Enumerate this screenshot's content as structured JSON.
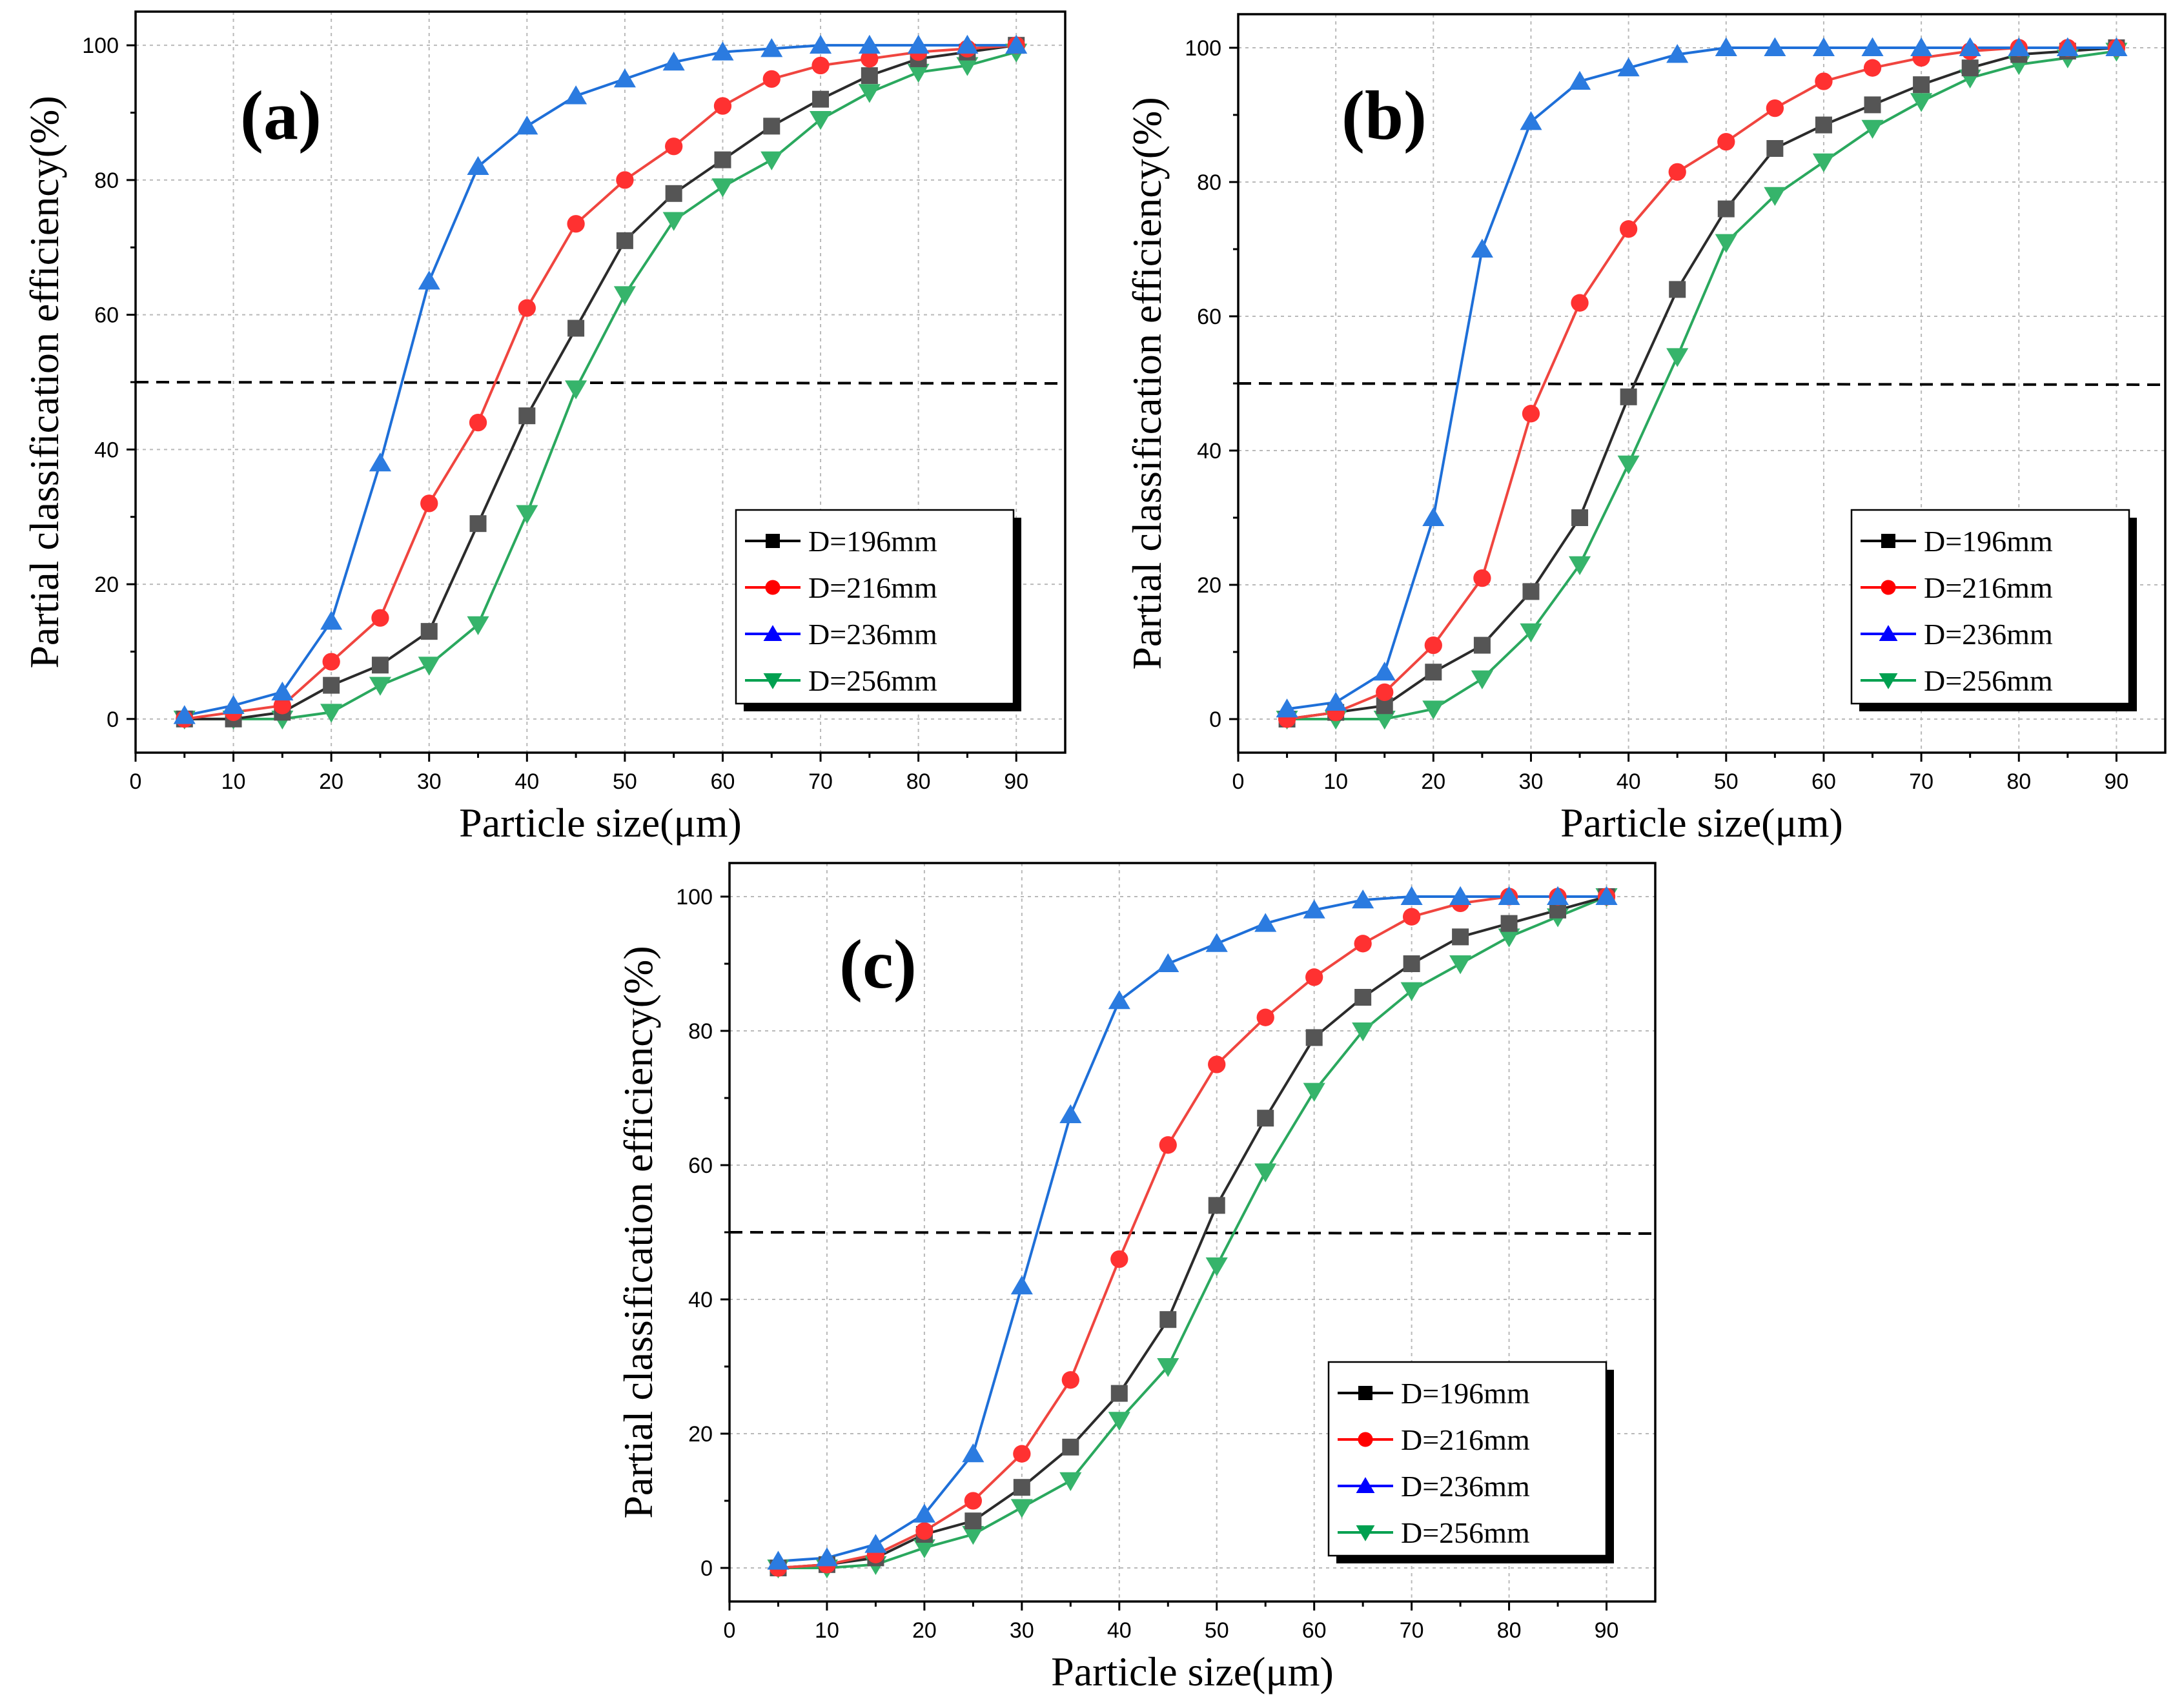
{
  "colors": {
    "D=196mm": {
      "line": "#2b2b2b",
      "fill": "#555555",
      "legend": "#000000"
    },
    "D=216mm": {
      "line": "#f0453f",
      "fill": "#ff3131",
      "legend": "#ff0000"
    },
    "D=236mm": {
      "line": "#1e6fd8",
      "fill": "#2b7be0",
      "legend": "#0000ff"
    },
    "D=256mm": {
      "line": "#2aa85e",
      "fill": "#36b46b",
      "legend": "#00a050"
    }
  },
  "chart_data": [
    {
      "type": "line",
      "panel": "(a)",
      "xlabel": "Particle size(μm)",
      "ylabel": "Partial classification efficiency(%)",
      "xlim": [
        0,
        95
      ],
      "ylim": [
        -5,
        105
      ],
      "xticks": [
        0,
        10,
        20,
        30,
        40,
        50,
        60,
        70,
        80,
        90
      ],
      "yticks": [
        0,
        20,
        40,
        60,
        80,
        100
      ],
      "reference_line_y": 50,
      "x": [
        5,
        10,
        15,
        20,
        25,
        30,
        35,
        40,
        45,
        50,
        55,
        60,
        65,
        70,
        75,
        80,
        85,
        90
      ],
      "series": [
        {
          "name": "D=196mm",
          "marker": "square",
          "values": [
            0,
            0,
            1,
            5,
            8,
            13,
            29,
            45,
            58,
            71,
            78,
            83,
            88,
            92,
            95.5,
            98,
            99,
            100
          ]
        },
        {
          "name": "D=216mm",
          "marker": "circle",
          "values": [
            0,
            1,
            2,
            8.5,
            15,
            32,
            44,
            61,
            73.5,
            80,
            85,
            91,
            95,
            97,
            98,
            99,
            99.5,
            100
          ]
        },
        {
          "name": "D=236mm",
          "marker": "triangle-up",
          "values": [
            0.5,
            2,
            4,
            14.5,
            38,
            65,
            82,
            88,
            92.5,
            95,
            97.5,
            99,
            99.5,
            100,
            100,
            100,
            100,
            100
          ]
        },
        {
          "name": "D=256mm",
          "marker": "triangle-down",
          "values": [
            0,
            0,
            0,
            1,
            5,
            8,
            14,
            30.5,
            49,
            63,
            74,
            79,
            83,
            89,
            93,
            96,
            97,
            99
          ]
        }
      ]
    },
    {
      "type": "line",
      "panel": "(b)",
      "xlabel": "Particle size(μm)",
      "ylabel": "Partial classification efficiency(%)",
      "xlim": [
        0,
        95
      ],
      "ylim": [
        -5,
        105
      ],
      "xticks": [
        0,
        10,
        20,
        30,
        40,
        50,
        60,
        70,
        80,
        90
      ],
      "yticks": [
        0,
        20,
        40,
        60,
        80,
        100
      ],
      "reference_line_y": 50,
      "x": [
        5,
        10,
        15,
        20,
        25,
        30,
        35,
        40,
        45,
        50,
        55,
        60,
        65,
        70,
        75,
        80,
        85,
        90
      ],
      "series": [
        {
          "name": "D=196mm",
          "marker": "square",
          "values": [
            0,
            1,
            2,
            7,
            11,
            19,
            30,
            48,
            64,
            76,
            85,
            88.5,
            91.5,
            94.5,
            97,
            99,
            99.5,
            100
          ]
        },
        {
          "name": "D=216mm",
          "marker": "circle",
          "values": [
            0,
            1,
            4,
            11,
            21,
            45.5,
            62,
            73,
            81.5,
            86,
            91,
            95,
            97,
            98.5,
            99.5,
            100,
            100,
            100
          ]
        },
        {
          "name": "D=236mm",
          "marker": "triangle-up",
          "values": [
            1.5,
            2.5,
            7,
            30,
            70,
            89,
            95,
            97,
            99,
            100,
            100,
            100,
            100,
            100,
            100,
            100,
            100,
            100
          ]
        },
        {
          "name": "D=256mm",
          "marker": "triangle-down",
          "values": [
            0,
            0,
            0,
            1.5,
            6,
            13,
            23,
            38,
            54,
            71,
            78,
            83,
            88,
            92,
            95.5,
            97.5,
            98.5,
            99.5
          ]
        }
      ]
    },
    {
      "type": "line",
      "panel": "(c)",
      "xlabel": "Particle size(μm)",
      "ylabel": "Partial classification efficiency(%)",
      "xlim": [
        0,
        95
      ],
      "ylim": [
        -5,
        105
      ],
      "xticks": [
        0,
        10,
        20,
        30,
        40,
        50,
        60,
        70,
        80,
        90
      ],
      "yticks": [
        0,
        20,
        40,
        60,
        80,
        100
      ],
      "reference_line_y": 50,
      "x": [
        5,
        10,
        15,
        20,
        25,
        30,
        35,
        40,
        45,
        50,
        55,
        60,
        65,
        70,
        75,
        80,
        85,
        90
      ],
      "series": [
        {
          "name": "D=196mm",
          "marker": "square",
          "values": [
            0,
            0.5,
            1.5,
            5,
            7,
            12,
            18,
            26,
            37,
            54,
            67,
            79,
            85,
            90,
            94,
            96,
            98,
            100
          ]
        },
        {
          "name": "D=216mm",
          "marker": "circle",
          "values": [
            0,
            0.5,
            2,
            5.5,
            10,
            17,
            28,
            46,
            63,
            75,
            82,
            88,
            93,
            97,
            99,
            100,
            100,
            100
          ]
        },
        {
          "name": "D=236mm",
          "marker": "triangle-up",
          "values": [
            1,
            1.5,
            3.5,
            8,
            17,
            42,
            67.5,
            84.5,
            90,
            93,
            96,
            98,
            99.5,
            100,
            100,
            100,
            100,
            100
          ]
        },
        {
          "name": "D=256mm",
          "marker": "triangle-down",
          "values": [
            0,
            0,
            0.5,
            3,
            5,
            9,
            13,
            22,
            30,
            45,
            59,
            71,
            80,
            86,
            90,
            94,
            97,
            100
          ]
        }
      ]
    }
  ]
}
